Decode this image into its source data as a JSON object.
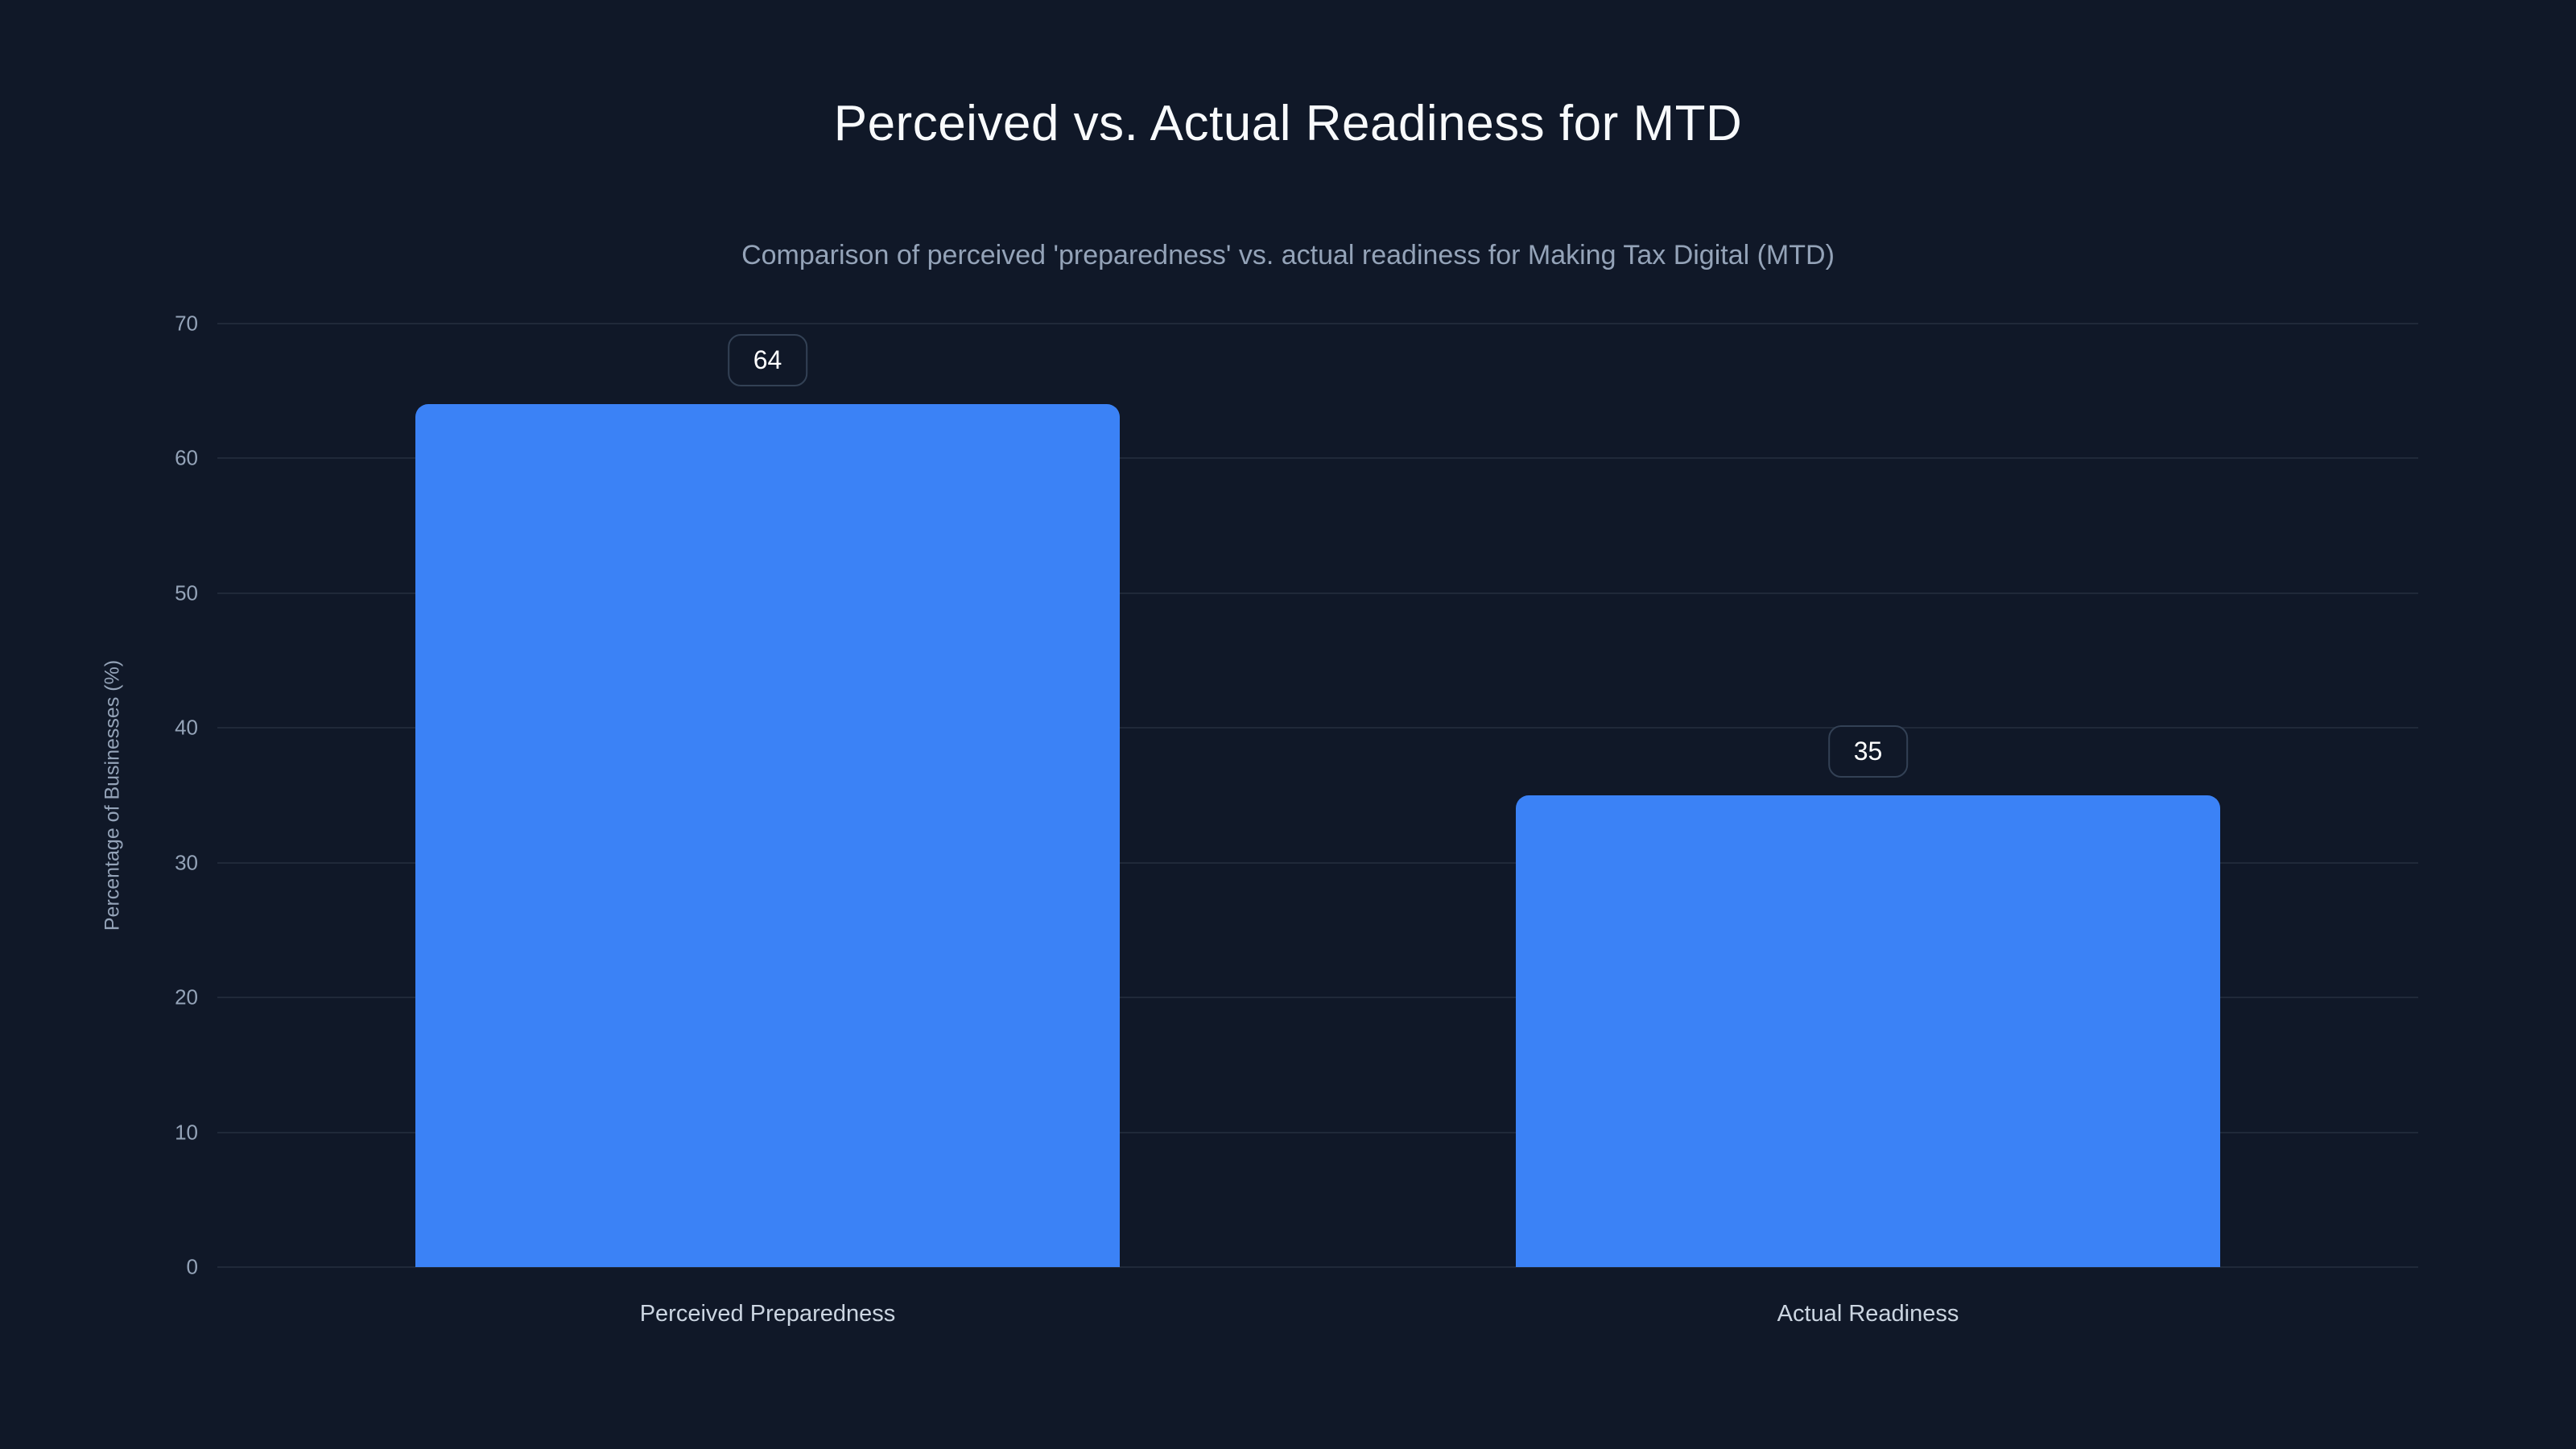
{
  "chart_data": {
    "type": "bar",
    "title": "Perceived vs. Actual Readiness for MTD",
    "subtitle": "Comparison of perceived 'preparedness' vs. actual readiness for Making Tax Digital (MTD)",
    "categories": [
      "Perceived Preparedness",
      "Actual Readiness"
    ],
    "values": [
      64,
      35
    ],
    "value_labels": [
      "64",
      "35"
    ],
    "xlabel": "",
    "ylabel": "Percentage of Businesses (%)",
    "ylim": [
      0,
      70
    ],
    "yticks": [
      0,
      10,
      20,
      30,
      40,
      50,
      60,
      70
    ],
    "grid": "horizontal",
    "legend": "none",
    "bar_width_fraction": 0.64,
    "colors": {
      "background": "#101828",
      "bar": "#3b82f6",
      "title": "#f8fafc",
      "subtitle": "#94a3b8",
      "tick": "#94a3b8",
      "category_label": "#cbd5e1",
      "gridline": "rgba(148,163,184,0.12)",
      "badge_border": "#334155",
      "badge_text": "#ffffff"
    }
  }
}
